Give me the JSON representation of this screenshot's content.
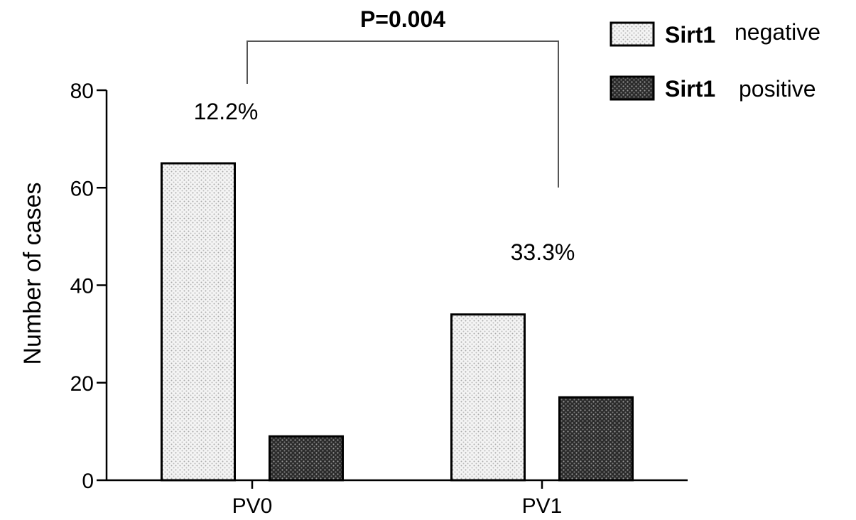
{
  "chart_data": {
    "type": "bar",
    "title": "",
    "xlabel": "",
    "ylabel": "Number of cases",
    "ylim": [
      0,
      80
    ],
    "yticks": [
      0,
      20,
      40,
      60,
      80
    ],
    "categories": [
      "PV0",
      "PV1"
    ],
    "series": [
      {
        "name": "Sirt1 negative",
        "values": [
          65,
          34
        ],
        "color": "#f2f2f2",
        "pattern": "light-dots"
      },
      {
        "name": "Sirt1 positive",
        "values": [
          9,
          17
        ],
        "color": "#3a3a3a",
        "pattern": "dark-dots"
      }
    ],
    "legend": {
      "placement": "top-right",
      "items": [
        {
          "name": "Sirt1",
          "desc": "negative"
        },
        {
          "name": "Sirt1",
          "desc": "positive"
        }
      ]
    },
    "annotations": {
      "percent_labels": [
        "12.2%",
        "33.3%"
      ],
      "significance": "P=0.004"
    },
    "grid": false
  }
}
